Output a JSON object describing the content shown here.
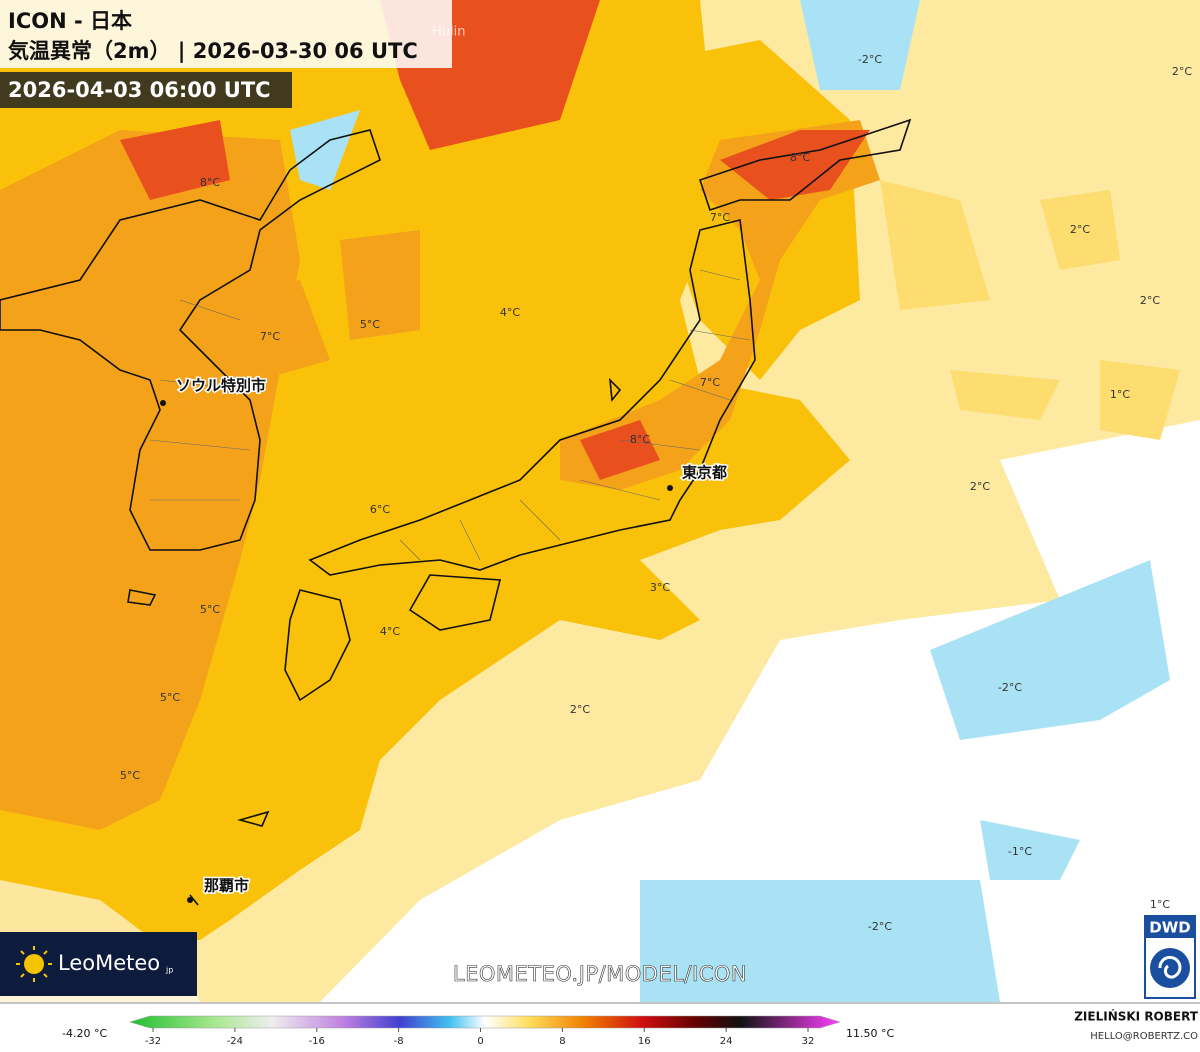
{
  "header": {
    "title": "ICON - 日本",
    "subtitle": "気温異常（2m） | 2026-03-30 06 UTC",
    "valid_time": "2026-04-03 06:00 UTC"
  },
  "map": {
    "place_labels": [
      "Hulin"
    ],
    "cities": [
      "ソウル特別市",
      "東京都",
      "那覇市"
    ],
    "contour_labels": [
      "8°C",
      "7°C",
      "5°C",
      "4°C",
      "8°C",
      "7°C",
      "-2°C",
      "2°C",
      "2°C",
      "2°C",
      "1°C",
      "7°C",
      "8°C",
      "2°C",
      "6°C",
      "3°C",
      "5°C",
      "4°C",
      "-2°C",
      "5°C",
      "2°C",
      "5°C",
      "-1°C",
      "1°C",
      "-2°C"
    ]
  },
  "branding": {
    "logo": "LeoMeteo",
    "logo_suffix": "jp",
    "url": "LEOMETEO.JP/MODEL/ICON",
    "dwd": "DWD",
    "author": "ZIELIŃSKI ROBERT",
    "email": "HELLO@ROBERTZ.CO"
  },
  "colorbar": {
    "min_label": "-4.20 °C",
    "max_label": "11.50 °C",
    "ticks": [
      -32,
      -24,
      -16,
      -8,
      0,
      8,
      16,
      24,
      32
    ]
  }
}
